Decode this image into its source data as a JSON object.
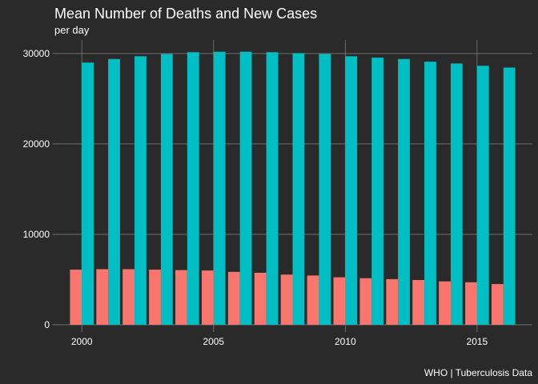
{
  "chart_data": {
    "type": "bar",
    "title": "Mean Number of Deaths and New Cases",
    "subtitle": "per day",
    "caption": "WHO | Tuberculosis Data",
    "xlabel": "",
    "ylabel": "",
    "x": [
      2000,
      2001,
      2002,
      2003,
      2004,
      2005,
      2006,
      2007,
      2008,
      2009,
      2010,
      2011,
      2012,
      2013,
      2014,
      2015,
      2016
    ],
    "x_ticks": [
      2000,
      2005,
      2010,
      2015
    ],
    "y_ticks": [
      0,
      10000,
      20000,
      30000
    ],
    "xlim": [
      1998.9,
      2017.1
    ],
    "ylim": [
      -800,
      31500
    ],
    "grid": true,
    "legend": "none",
    "series": [
      {
        "color": "#f8766d",
        "values": [
          6100,
          6150,
          6150,
          6100,
          6050,
          6000,
          5850,
          5750,
          5550,
          5450,
          5250,
          5150,
          5050,
          4950,
          4800,
          4700,
          4500
        ]
      },
      {
        "color": "#00bfc4",
        "values": [
          29000,
          29400,
          29700,
          29950,
          30150,
          30200,
          30200,
          30150,
          30050,
          29950,
          29700,
          29550,
          29400,
          29100,
          28900,
          28650,
          28450
        ]
      }
    ]
  },
  "style": {
    "background": "#2a2a2a",
    "grid_color": "#7a7a7a",
    "text_color": "#ffffff"
  }
}
